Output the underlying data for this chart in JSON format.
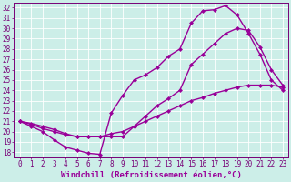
{
  "xlabel": "Windchill (Refroidissement éolien,°C)",
  "ylabel": "",
  "bg_color": "#cceee8",
  "line_color": "#990099",
  "grid_color": "#b8ddd8",
  "xlim": [
    -0.5,
    23.5
  ],
  "ylim": [
    17.5,
    32.5
  ],
  "xticks": [
    0,
    1,
    2,
    3,
    4,
    5,
    6,
    7,
    8,
    9,
    10,
    11,
    12,
    13,
    14,
    15,
    16,
    17,
    18,
    19,
    20,
    21,
    22,
    23
  ],
  "yticks": [
    18,
    19,
    20,
    21,
    22,
    23,
    24,
    25,
    26,
    27,
    28,
    29,
    30,
    31,
    32
  ],
  "line1_x": [
    0,
    1,
    2,
    3,
    4,
    5,
    6,
    7,
    8,
    9,
    10,
    11,
    12,
    13,
    14,
    15,
    16,
    17,
    18,
    19,
    20,
    21,
    22,
    23
  ],
  "line1_y": [
    21.0,
    20.5,
    20.0,
    19.2,
    18.5,
    18.2,
    17.9,
    17.8,
    21.8,
    23.5,
    25.0,
    25.5,
    26.2,
    27.3,
    28.0,
    30.5,
    31.7,
    31.8,
    32.2,
    31.3,
    29.5,
    27.5,
    25.0,
    24.0
  ],
  "line2_x": [
    0,
    1,
    2,
    3,
    4,
    5,
    6,
    7,
    8,
    9,
    10,
    11,
    12,
    13,
    14,
    15,
    16,
    17,
    18,
    19,
    20,
    21,
    22,
    23
  ],
  "line2_y": [
    21.0,
    20.8,
    20.5,
    20.2,
    19.8,
    19.5,
    19.5,
    19.5,
    19.5,
    19.5,
    20.5,
    21.5,
    22.5,
    23.2,
    24.0,
    26.5,
    27.5,
    28.5,
    29.5,
    30.0,
    29.8,
    28.2,
    26.0,
    24.5
  ],
  "line3_x": [
    0,
    1,
    2,
    3,
    4,
    5,
    6,
    7,
    8,
    9,
    10,
    11,
    12,
    13,
    14,
    15,
    16,
    17,
    18,
    19,
    20,
    21,
    22,
    23
  ],
  "line3_y": [
    21.0,
    20.7,
    20.3,
    20.0,
    19.7,
    19.5,
    19.5,
    19.5,
    19.8,
    20.0,
    20.5,
    21.0,
    21.5,
    22.0,
    22.5,
    23.0,
    23.3,
    23.7,
    24.0,
    24.3,
    24.5,
    24.5,
    24.5,
    24.3
  ],
  "marker": "D",
  "marker_size": 2.5,
  "line_width": 1.0,
  "xlabel_fontsize": 6.5,
  "tick_fontsize": 5.5,
  "xlabel_color": "#990099",
  "tick_color": "#770077",
  "axis_color": "#770077",
  "spine_color": "#770077"
}
